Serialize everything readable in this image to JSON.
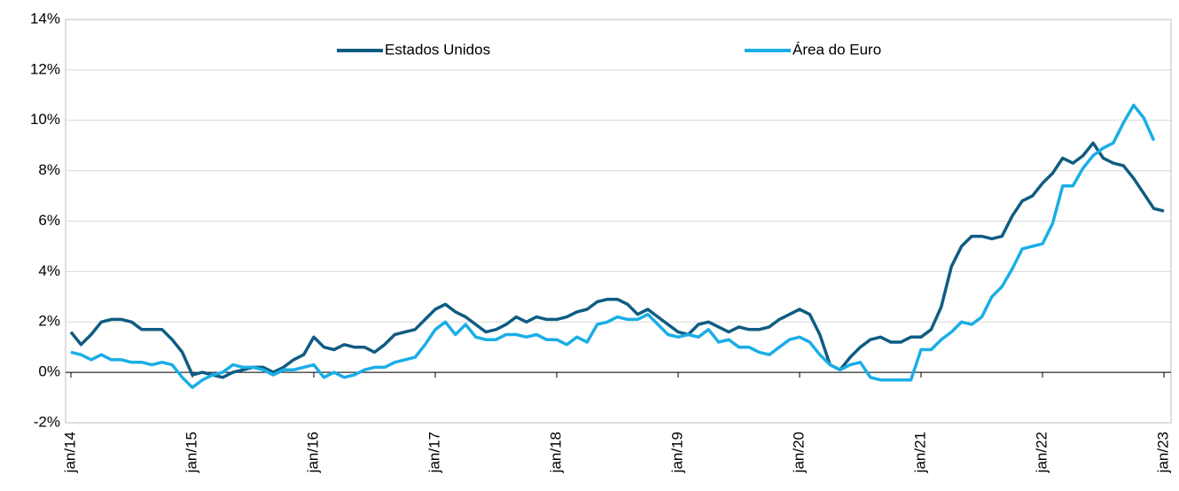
{
  "chart_data": {
    "type": "line",
    "categories": [
      "jan/14",
      null,
      null,
      null,
      null,
      null,
      null,
      null,
      null,
      null,
      null,
      null,
      "jan/15",
      null,
      null,
      null,
      null,
      null,
      null,
      null,
      null,
      null,
      null,
      null,
      "jan/16",
      null,
      null,
      null,
      null,
      null,
      null,
      null,
      null,
      null,
      null,
      null,
      "jan/17",
      null,
      null,
      null,
      null,
      null,
      null,
      null,
      null,
      null,
      null,
      null,
      "jan/18",
      null,
      null,
      null,
      null,
      null,
      null,
      null,
      null,
      null,
      null,
      null,
      "jan/19",
      null,
      null,
      null,
      null,
      null,
      null,
      null,
      null,
      null,
      null,
      null,
      "jan/20",
      null,
      null,
      null,
      null,
      null,
      null,
      null,
      null,
      null,
      null,
      null,
      "jan/21",
      null,
      null,
      null,
      null,
      null,
      null,
      null,
      null,
      null,
      null,
      null,
      "jan/22",
      null,
      null,
      null,
      null,
      null,
      null,
      null,
      null,
      null,
      null,
      null,
      "jan/23"
    ],
    "series": [
      {
        "name": "Estados Unidos",
        "color": "#0f5c82",
        "values": [
          1.6,
          1.1,
          1.5,
          2.0,
          2.1,
          2.1,
          2.0,
          1.7,
          1.7,
          1.7,
          1.3,
          0.8,
          -0.1,
          0.0,
          -0.1,
          -0.2,
          0.0,
          0.1,
          0.2,
          0.2,
          0.0,
          0.2,
          0.5,
          0.7,
          1.4,
          1.0,
          0.9,
          1.1,
          1.0,
          1.0,
          0.8,
          1.1,
          1.5,
          1.6,
          1.7,
          2.1,
          2.5,
          2.7,
          2.4,
          2.2,
          1.9,
          1.6,
          1.7,
          1.9,
          2.2,
          2.0,
          2.2,
          2.1,
          2.1,
          2.2,
          2.4,
          2.5,
          2.8,
          2.9,
          2.9,
          2.7,
          2.3,
          2.5,
          2.2,
          1.9,
          1.6,
          1.5,
          1.9,
          2.0,
          1.8,
          1.6,
          1.8,
          1.7,
          1.7,
          1.8,
          2.1,
          2.3,
          2.5,
          2.3,
          1.5,
          0.3,
          0.1,
          0.6,
          1.0,
          1.3,
          1.4,
          1.2,
          1.2,
          1.4,
          1.4,
          1.7,
          2.6,
          4.2,
          5.0,
          5.4,
          5.4,
          5.3,
          5.4,
          6.2,
          6.8,
          7.0,
          7.5,
          7.9,
          8.5,
          8.3,
          8.6,
          9.1,
          8.5,
          8.3,
          8.2,
          7.7,
          7.1,
          6.5,
          6.4
        ]
      },
      {
        "name": "Área do Euro",
        "color": "#1aaee6",
        "values": [
          0.8,
          0.7,
          0.5,
          0.7,
          0.5,
          0.5,
          0.4,
          0.4,
          0.3,
          0.4,
          0.3,
          -0.2,
          -0.6,
          -0.3,
          -0.1,
          0.0,
          0.3,
          0.2,
          0.2,
          0.1,
          -0.1,
          0.1,
          0.1,
          0.2,
          0.3,
          -0.2,
          0.0,
          -0.2,
          -0.1,
          0.1,
          0.2,
          0.2,
          0.4,
          0.5,
          0.6,
          1.1,
          1.7,
          2.0,
          1.5,
          1.9,
          1.4,
          1.3,
          1.3,
          1.5,
          1.5,
          1.4,
          1.5,
          1.3,
          1.3,
          1.1,
          1.4,
          1.2,
          1.9,
          2.0,
          2.2,
          2.1,
          2.1,
          2.3,
          1.9,
          1.5,
          1.4,
          1.5,
          1.4,
          1.7,
          1.2,
          1.3,
          1.0,
          1.0,
          0.8,
          0.7,
          1.0,
          1.3,
          1.4,
          1.2,
          0.7,
          0.3,
          0.1,
          0.3,
          0.4,
          -0.2,
          -0.3,
          -0.3,
          -0.3,
          -0.3,
          0.9,
          0.9,
          1.3,
          1.6,
          2.0,
          1.9,
          2.2,
          3.0,
          3.4,
          4.1,
          4.9,
          5.0,
          5.1,
          5.9,
          7.4,
          7.4,
          8.1,
          8.6,
          8.9,
          9.1,
          9.9,
          10.6,
          10.1,
          9.2,
          null
        ]
      }
    ],
    "ylim": [
      -2,
      14
    ],
    "yticks": [
      {
        "value": -2,
        "label": "-2%"
      },
      {
        "value": 0,
        "label": "0%"
      },
      {
        "value": 2,
        "label": "2%"
      },
      {
        "value": 4,
        "label": "4%"
      },
      {
        "value": 6,
        "label": "6%"
      },
      {
        "value": 8,
        "label": "8%"
      },
      {
        "value": 10,
        "label": "10%"
      },
      {
        "value": 12,
        "label": "12%"
      },
      {
        "value": 14,
        "label": "14%"
      }
    ],
    "grid": true
  }
}
